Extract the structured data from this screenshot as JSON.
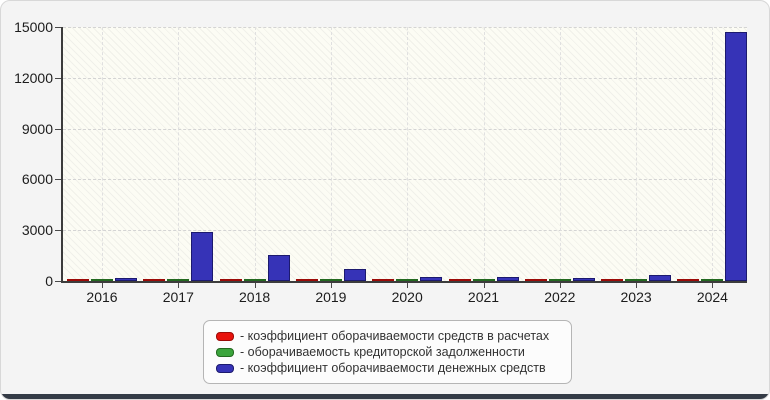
{
  "chart_data": {
    "type": "bar",
    "title": "",
    "xlabel": "",
    "ylabel": "",
    "ylim": [
      0,
      15000
    ],
    "yticks": [
      0,
      3000,
      6000,
      9000,
      12000,
      15000
    ],
    "ytick_labels": [
      "0",
      "3000",
      "6000",
      "9000",
      "12000",
      "15000"
    ],
    "categories": [
      "2016",
      "2017",
      "2018",
      "2019",
      "2020",
      "2021",
      "2022",
      "2023",
      "2024"
    ],
    "series": [
      {
        "id": "receivables-turnover",
        "name": "коэффициент оборачиваемости средств в расчетах",
        "color": "#e8120c",
        "border_color": "#9c0b07",
        "values": [
          100,
          100,
          100,
          100,
          100,
          100,
          100,
          100,
          100
        ]
      },
      {
        "id": "payables-turnover",
        "name": "оборачиваемость кредиторской задолженности",
        "color": "#3ba43c",
        "border_color": "#23691f",
        "values": [
          120,
          120,
          120,
          120,
          120,
          120,
          120,
          120,
          120
        ]
      },
      {
        "id": "cash-turnover",
        "name": "коэффициент оборачиваемости денежных средств",
        "color": "#3633b7",
        "border_color": "#1c1a6e",
        "values": [
          160,
          2900,
          1550,
          720,
          230,
          210,
          190,
          340,
          14700
        ]
      }
    ],
    "grid": "dashed horizontal and vertical gridlines",
    "legend_position": "bottom-center",
    "plot_background": "light ivory with diagonal hatching"
  },
  "legend": {
    "items": [
      {
        "label": "- коэффициент оборачиваемости средств в расчетах",
        "color": "#e8120c",
        "border_color": "#9c0b07"
      },
      {
        "label": "- оборачиваемость кредиторской задолженности",
        "color": "#3ba43c",
        "border_color": "#23691f"
      },
      {
        "label": "- коэффициент оборачиваемости денежных средств",
        "color": "#3633b7",
        "border_color": "#1c1a6e"
      }
    ]
  }
}
